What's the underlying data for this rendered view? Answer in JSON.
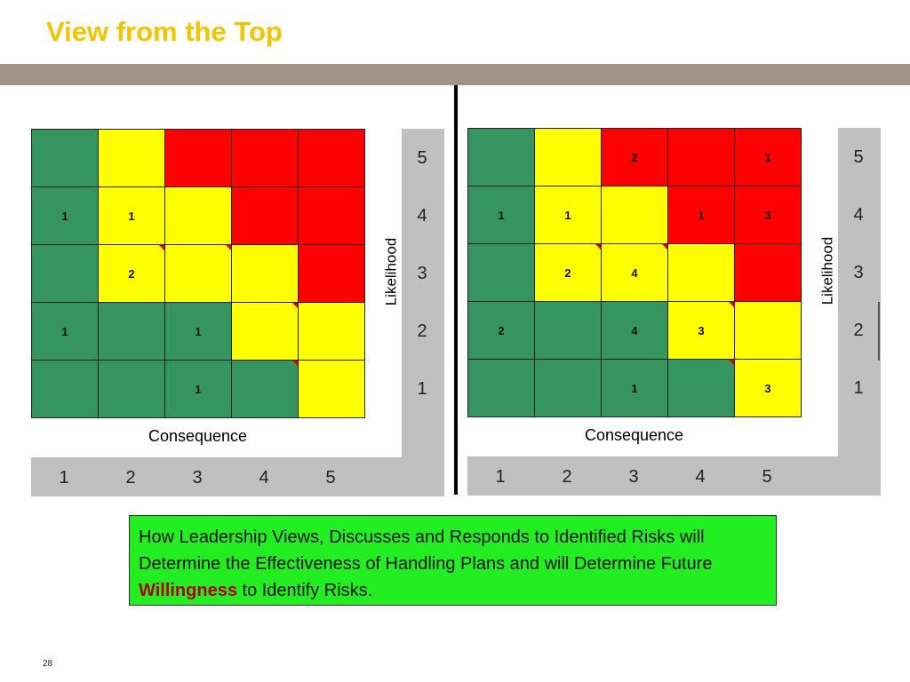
{
  "slide": {
    "title": "View from the Top",
    "page_number": "28"
  },
  "matrices": [
    {
      "x_label": "Consequence",
      "y_label": "Likelihood",
      "x_ticks": [
        "1",
        "2",
        "3",
        "4",
        "5"
      ],
      "y_ticks": [
        "5",
        "4",
        "3",
        "2",
        "1"
      ],
      "colors": [
        [
          "G",
          "Y",
          "R",
          "R",
          "R"
        ],
        [
          "G",
          "Y",
          "Y",
          "R",
          "R"
        ],
        [
          "G",
          "Y",
          "Y",
          "Y",
          "R"
        ],
        [
          "G",
          "G",
          "G",
          "Y",
          "Y"
        ],
        [
          "G",
          "G",
          "G",
          "G",
          "Y"
        ]
      ],
      "counts": [
        [
          "",
          "",
          "",
          "",
          ""
        ],
        [
          "1",
          "1",
          "",
          "",
          ""
        ],
        [
          "",
          "2",
          "",
          "",
          ""
        ],
        [
          "1",
          "",
          "1",
          "",
          ""
        ],
        [
          "",
          "",
          "1",
          "",
          ""
        ]
      ],
      "flags": [
        [
          false,
          false,
          false,
          false,
          false
        ],
        [
          false,
          false,
          false,
          false,
          false
        ],
        [
          false,
          true,
          true,
          false,
          false
        ],
        [
          false,
          false,
          false,
          true,
          false
        ],
        [
          false,
          false,
          false,
          true,
          false
        ]
      ]
    },
    {
      "x_label": "Consequence",
      "y_label": "Likelihood",
      "x_ticks": [
        "1",
        "2",
        "3",
        "4",
        "5"
      ],
      "y_ticks": [
        "5",
        "4",
        "3",
        "2",
        "1"
      ],
      "colors": [
        [
          "G",
          "Y",
          "R",
          "R",
          "R"
        ],
        [
          "G",
          "Y",
          "Y",
          "R",
          "R"
        ],
        [
          "G",
          "Y",
          "Y",
          "Y",
          "R"
        ],
        [
          "G",
          "G",
          "G",
          "Y",
          "Y"
        ],
        [
          "G",
          "G",
          "G",
          "G",
          "Y"
        ]
      ],
      "counts": [
        [
          "",
          "",
          "2",
          "",
          "1"
        ],
        [
          "1",
          "1",
          "",
          "1",
          "3"
        ],
        [
          "",
          "2",
          "4",
          "",
          ""
        ],
        [
          "2",
          "",
          "4",
          "3",
          ""
        ],
        [
          "",
          "",
          "1",
          "",
          "3"
        ]
      ],
      "flags": [
        [
          false,
          false,
          false,
          false,
          false
        ],
        [
          false,
          false,
          false,
          false,
          false
        ],
        [
          false,
          true,
          true,
          false,
          false
        ],
        [
          false,
          false,
          false,
          true,
          false
        ],
        [
          false,
          false,
          false,
          true,
          false
        ]
      ]
    }
  ],
  "palette": {
    "G": "#36955f",
    "Y": "#ffff00",
    "R": "#ff0000",
    "title": "#f5c400",
    "note_bg": "#22ee22",
    "emphasis": "#b00000"
  },
  "note": {
    "text_before": "How Leadership Views, Discusses and Responds to Identified Risks will Determine the Effectiveness of Handling Plans and will Determine Future ",
    "emphasis": "Willingness",
    "text_after": " to Identify Risks."
  }
}
